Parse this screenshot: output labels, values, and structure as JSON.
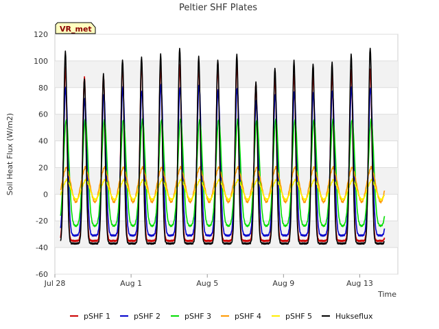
{
  "chart_data": {
    "type": "line",
    "title": "Peltier SHF Plates",
    "xlabel": "Time",
    "ylabel": "Soil Heat Flux (W/m2)",
    "ylim": [
      -60,
      120
    ],
    "yticks": [
      -60,
      -40,
      -20,
      0,
      20,
      40,
      60,
      80,
      100,
      120
    ],
    "xlim_days": [
      0,
      18
    ],
    "xticks": [
      {
        "day": 0,
        "label": "Jul 28"
      },
      {
        "day": 4,
        "label": "Aug 1"
      },
      {
        "day": 8,
        "label": "Aug 5"
      },
      {
        "day": 12,
        "label": "Aug 9"
      },
      {
        "day": 16,
        "label": "Aug 13"
      }
    ],
    "grid": true,
    "badge": "VR_met",
    "legend_position": "bottom",
    "x_start_day": 0.3,
    "x_end_day": 17.3,
    "samples_per_day": 48,
    "daily_peaks": {
      "pSHF 1": [
        95,
        88,
        89,
        97,
        98,
        96,
        97,
        96,
        96,
        97,
        83,
        88,
        90,
        90,
        90,
        93,
        94
      ],
      "pSHF 2": [
        80,
        72,
        75,
        80,
        78,
        82,
        80,
        82,
        78,
        80,
        70,
        75,
        77,
        76,
        78,
        80,
        80
      ],
      "Hukseflux": [
        107,
        87,
        90,
        101,
        103,
        105,
        110,
        103,
        101,
        105,
        84,
        95,
        100,
        98,
        99,
        105,
        110
      ]
    },
    "series": [
      {
        "name": "pSHF 1",
        "color": "#cc0000",
        "min": -35,
        "phase": 0.55,
        "width": 0.09,
        "sign": 1
      },
      {
        "name": "pSHF 2",
        "color": "#0000cc",
        "min": -31,
        "phase": 0.57,
        "width": 0.11,
        "sign": 1
      },
      {
        "name": "pSHF 3",
        "color": "#00dd00",
        "min": -24,
        "max": 56,
        "phase": 0.6,
        "width": 0.14,
        "sign": 1
      },
      {
        "name": "pSHF 4",
        "color": "#ff9900",
        "min": -6,
        "max": 24,
        "phase": 0.1,
        "width": 0.24,
        "sign": -1
      },
      {
        "name": "pSHF 5",
        "color": "#ffee00",
        "min": -4,
        "max": 14,
        "phase": 0.12,
        "width": 0.26,
        "sign": -1
      },
      {
        "name": "Hukseflux",
        "color": "#000000",
        "min": -37,
        "phase": 0.55,
        "width": 0.085,
        "sign": 1
      }
    ]
  }
}
